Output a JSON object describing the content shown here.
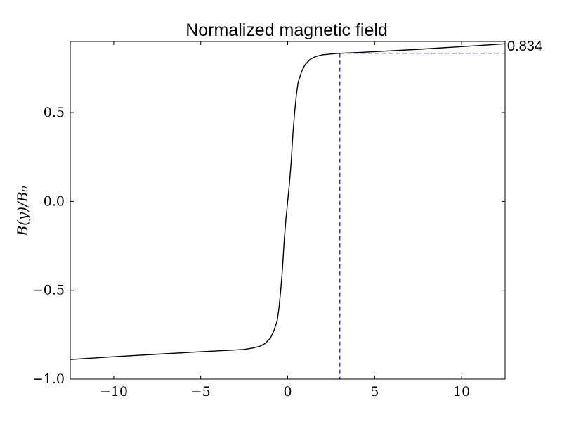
{
  "chart_data": {
    "type": "line",
    "title": "Normalized magnetic field",
    "xlabel": "",
    "ylabel": "B(y)/B₀",
    "xlim": [
      -12.5,
      12.5
    ],
    "ylim": [
      -1.0,
      0.9
    ],
    "x_ticks": [
      -10,
      -5,
      0,
      5,
      10
    ],
    "x_tick_labels": [
      "−10",
      "−5",
      "0",
      "5",
      "10"
    ],
    "y_ticks": [
      -1.0,
      -0.5,
      0.0,
      0.5
    ],
    "y_tick_labels": [
      "−1.0",
      "−0.5",
      "0.0",
      "0.5"
    ],
    "grid": false,
    "series": [
      {
        "color": "#000000",
        "x": [
          -12.5,
          -10,
          -7.5,
          -5,
          -4,
          -3,
          -2.5,
          -2,
          -1.6,
          -1.3,
          -1.0,
          -0.8,
          -0.6,
          -0.5,
          -0.4,
          -0.3,
          -0.2,
          -0.1,
          0,
          0.1,
          0.2,
          0.3,
          0.4,
          0.5,
          0.6,
          0.8,
          1.0,
          1.3,
          1.6,
          2,
          2.5,
          3,
          4,
          5,
          7.5,
          10,
          12.5
        ],
        "y": [
          -0.89,
          -0.874,
          -0.86,
          -0.846,
          -0.841,
          -0.836,
          -0.833,
          -0.825,
          -0.815,
          -0.8,
          -0.77,
          -0.73,
          -0.67,
          -0.6,
          -0.5,
          -0.38,
          -0.22,
          -0.1,
          0.0,
          0.1,
          0.22,
          0.38,
          0.5,
          0.6,
          0.67,
          0.73,
          0.77,
          0.8,
          0.815,
          0.825,
          0.83,
          0.834,
          0.838,
          0.843,
          0.856,
          0.871,
          0.887
        ]
      }
    ],
    "annotation": {
      "marker_x": 3,
      "value": 0.834,
      "label": "0.834",
      "color": "#0000ff",
      "style": "dashed"
    }
  }
}
